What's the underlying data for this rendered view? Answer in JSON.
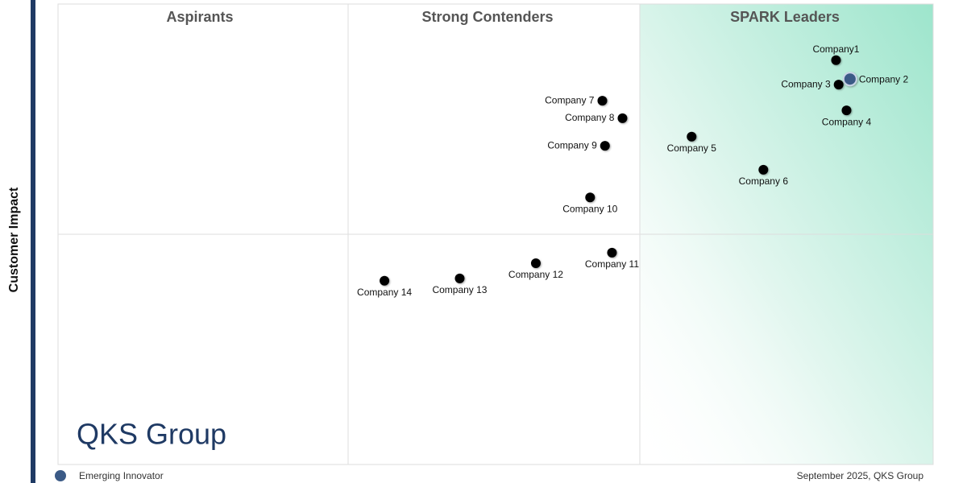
{
  "chart_data": {
    "type": "scatter",
    "quadrants": [
      "Aspirants",
      "Strong Contenders",
      "SPARK Leaders"
    ],
    "y_label": "Customer Impact",
    "logo": "QKS Group",
    "footer": "September 2025, QKS Group",
    "xlim": [
      0,
      100
    ],
    "ylim": [
      0,
      100
    ],
    "series": [
      {
        "name": "Emerging Innovator",
        "color": "#3b5a86",
        "labels": [
          "Company 2"
        ],
        "x": [
          90.5
        ],
        "y": [
          83.7
        ]
      },
      {
        "color": "#000000",
        "labels": [
          "Company1",
          "Company 3",
          "Company 4",
          "Company 5",
          "Company 6",
          "Company 7",
          "Company 8",
          "Company 9",
          "Company 10",
          "Company 11",
          "Company 12",
          "Company 13",
          "Company 14"
        ],
        "x": [
          88.9,
          89.2,
          90.1,
          72.4,
          80.6,
          62.2,
          64.5,
          62.5,
          60.8,
          63.3,
          54.6,
          45.9,
          37.3
        ],
        "y": [
          87.8,
          82.5,
          76.9,
          71.2,
          64.0,
          79.0,
          75.2,
          69.2,
          58.0,
          46.0,
          43.7,
          40.4,
          39.9
        ]
      }
    ]
  }
}
